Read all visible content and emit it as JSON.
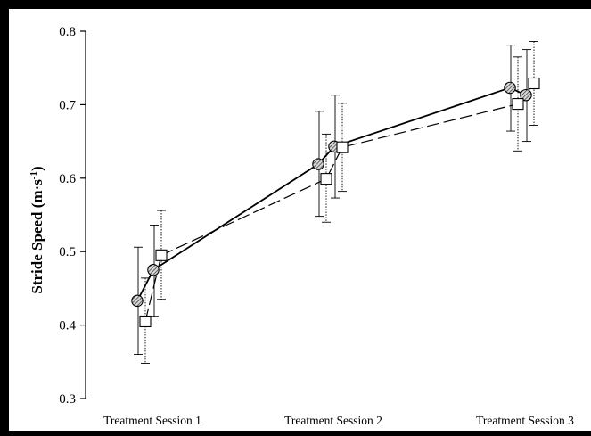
{
  "chart_data": {
    "type": "line",
    "title": "",
    "xlabel": "",
    "ylabel": "Stride Speed (m·s",
    "ylabel_superscript": "-1",
    "ylabel_suffix": ")",
    "ylim": [
      0.3,
      0.8
    ],
    "yticks": [
      0.3,
      0.4,
      0.5,
      0.6,
      0.7,
      0.8
    ],
    "ytick_labels": [
      "0.3",
      "0.4",
      "0.5",
      "0.6",
      "0.7",
      "0.8"
    ],
    "categories": [
      "Treatment Session 1",
      "Treatment Session 2",
      "Treatment Session 3"
    ],
    "grid": false,
    "legend": "none",
    "series": [
      {
        "marker": "circle-hatched",
        "line": "solid",
        "errorbar_style": "solid",
        "points": [
          {
            "category": 0,
            "offset": -1,
            "y": 0.433,
            "err_low": 0.36,
            "err_high": 0.506
          },
          {
            "category": 0,
            "offset": 0,
            "y": 0.475,
            "err_low": 0.412,
            "err_high": 0.536
          },
          {
            "category": 1,
            "offset": -1,
            "y": 0.619,
            "err_low": 0.548,
            "err_high": 0.691
          },
          {
            "category": 1,
            "offset": 0,
            "y": 0.643,
            "err_low": 0.573,
            "err_high": 0.713
          },
          {
            "category": 2,
            "offset": -1,
            "y": 0.723,
            "err_low": 0.664,
            "err_high": 0.781
          },
          {
            "category": 2,
            "offset": 0,
            "y": 0.713,
            "err_low": 0.65,
            "err_high": 0.775
          }
        ]
      },
      {
        "marker": "square-open",
        "line": "dashed",
        "errorbar_style": "dotted",
        "points": [
          {
            "category": 0,
            "offset": -0.5,
            "y": 0.405,
            "err_low": 0.348,
            "err_high": 0.464
          },
          {
            "category": 0,
            "offset": 0.5,
            "y": 0.495,
            "err_low": 0.435,
            "err_high": 0.556
          },
          {
            "category": 1,
            "offset": -0.5,
            "y": 0.599,
            "err_low": 0.54,
            "err_high": 0.66
          },
          {
            "category": 1,
            "offset": 0.5,
            "y": 0.642,
            "err_low": 0.582,
            "err_high": 0.702
          },
          {
            "category": 2,
            "offset": -0.5,
            "y": 0.701,
            "err_low": 0.637,
            "err_high": 0.765
          },
          {
            "category": 2,
            "offset": 0.5,
            "y": 0.729,
            "err_low": 0.672,
            "err_high": 0.786
          }
        ]
      }
    ]
  }
}
